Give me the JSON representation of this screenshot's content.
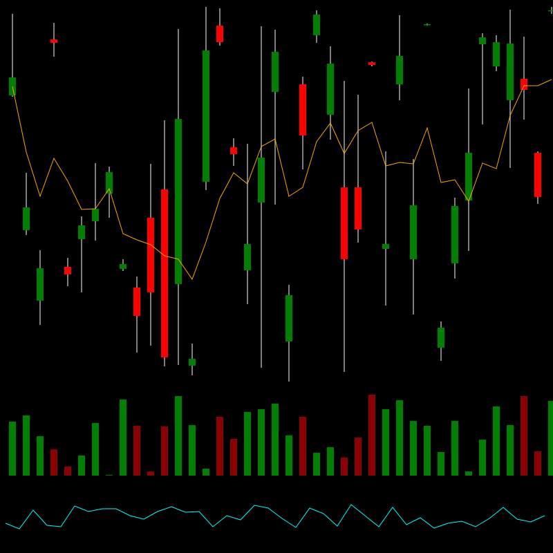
{
  "chart_data": [
    {
      "type": "candlestick",
      "up_color": "#008000",
      "down_color": "#ff0000",
      "wick_color": "#aaaaaa",
      "ylim": [
        0,
        560
      ],
      "open": [
        422,
        227,
        125,
        503,
        174,
        214,
        240,
        280,
        171,
        144,
        245,
        286,
        149,
        31,
        297,
        523,
        347,
        169,
        267,
        427,
        66,
        438,
        509,
        394,
        289,
        289,
        470,
        200,
        438,
        185,
        524,
        57,
        179,
        270,
        496,
        464,
        415,
        446,
        339,
        544
      ],
      "high": [
        540,
        310,
        198,
        527,
        187,
        247,
        324,
        319,
        185,
        160,
        323,
        386,
        518,
        63,
        550,
        548,
        360,
        352,
        522,
        517,
        148,
        449,
        545,
        493,
        443,
        423,
        471,
        341,
        538,
        330,
        526,
        95,
        274,
        432,
        512,
        509,
        546,
        507,
        341,
        550
      ],
      "low": [
        420,
        220,
        90,
        478,
        146,
        137,
        212,
        245,
        168,
        50,
        60,
        30,
        32,
        17,
        285,
        494,
        320,
        120,
        28,
        264,
        8,
        315,
        498,
        358,
        22,
        209,
        464,
        118,
        415,
        105,
        523,
        38,
        157,
        197,
        380,
        457,
        317,
        387,
        265,
        540
      ],
      "close": [
        448,
        260,
        172,
        498,
        163,
        234,
        258,
        311,
        178,
        103,
        137,
        43,
        388,
        41,
        487,
        499,
        337,
        207,
        332,
        485,
        133,
        364,
        539,
        468,
        185,
        228,
        466,
        207,
        479,
        263,
        525,
        86,
        262,
        339,
        506,
        499,
        497,
        430,
        275,
        545
      ],
      "overlay": {
        "color": "#ffa500",
        "values": [
          435,
          340,
          276,
          331,
          298,
          257,
          258,
          287,
          222,
          213,
          206,
          190,
          185,
          156,
          210,
          273,
          310,
          294,
          348,
          359,
          276,
          289,
          355,
          382,
          338,
          371,
          383,
          320,
          325,
          323,
          375,
          296,
          300,
          269,
          324,
          316,
          393,
          436,
          436,
          445
        ]
      }
    },
    {
      "type": "bar",
      "up_color": "#008000",
      "down_color": "#8b0000",
      "ylim": [
        0,
        125
      ],
      "values": [
        78,
        87,
        57,
        38,
        13,
        29,
        76,
        1,
        110,
        72,
        6,
        71,
        115,
        73,
        10,
        85,
        53,
        92,
        96,
        104,
        58,
        85,
        33,
        41,
        26,
        55,
        117,
        96,
        109,
        79,
        72,
        34,
        79,
        6,
        52,
        100,
        73,
        115,
        35,
        108
      ]
    },
    {
      "type": "line",
      "color": "#00ffff",
      "ylim": [
        0,
        100
      ],
      "values": [
        43,
        35,
        62,
        40,
        38,
        68,
        60,
        64,
        64,
        54,
        49,
        60,
        67,
        59,
        60,
        38,
        54,
        48,
        69,
        65,
        50,
        37,
        65,
        57,
        39,
        70,
        54,
        38,
        66,
        41,
        51,
        36,
        43,
        46,
        38,
        50,
        66,
        49,
        45,
        54
      ]
    }
  ]
}
